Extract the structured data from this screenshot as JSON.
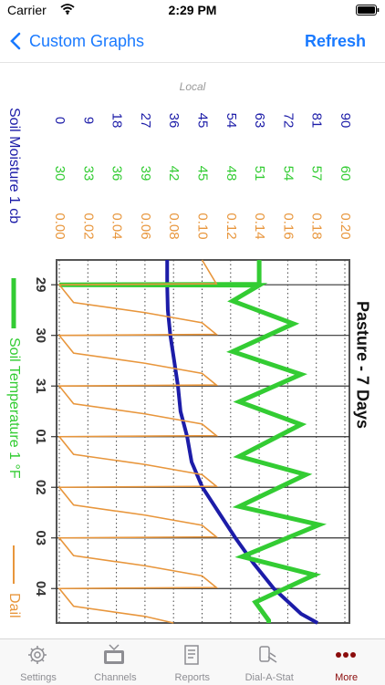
{
  "status_bar": {
    "carrier": "Carrier",
    "time": "2:29 PM"
  },
  "nav_bar": {
    "back": "Custom Graphs",
    "action": "Refresh"
  },
  "source_label": "Local",
  "chart_data": {
    "type": "line",
    "title": "Pasture - 7 Days",
    "xlim": [
      -0.49,
      6.68
    ],
    "xticks": [
      {
        "value": 0,
        "label": "29"
      },
      {
        "value": 1,
        "label": "30"
      },
      {
        "value": 2,
        "label": "31"
      },
      {
        "value": 3,
        "label": "01"
      },
      {
        "value": 4,
        "label": "02"
      },
      {
        "value": 5,
        "label": "03"
      },
      {
        "value": 6,
        "label": "04"
      }
    ],
    "ylim": [
      0,
      90
    ],
    "yticks": [
      0,
      9,
      18,
      27,
      36,
      45,
      54,
      63,
      72,
      81,
      90
    ],
    "y2lim": [
      30,
      60
    ],
    "y2ticks": [
      30,
      33,
      36,
      39,
      42,
      45,
      48,
      51,
      54,
      57,
      60
    ],
    "y3lim": [
      0,
      0.2
    ],
    "y3ticks": [
      {
        "value": 0,
        "label": "0.00"
      },
      {
        "value": 0.02,
        "label": "0.02"
      },
      {
        "value": 0.04,
        "label": "0.04"
      },
      {
        "value": 0.06,
        "label": "0.06"
      },
      {
        "value": 0.08,
        "label": "0.08"
      },
      {
        "value": 0.1,
        "label": "0.10"
      },
      {
        "value": 0.12,
        "label": "0.12"
      },
      {
        "value": 0.14,
        "label": "0.14"
      },
      {
        "value": 0.16,
        "label": "0.16"
      },
      {
        "value": 0.18,
        "label": "0.18"
      },
      {
        "value": 0.2,
        "label": "0.20"
      }
    ],
    "grid": true,
    "series": [
      {
        "name": "Soil Moisture 1 cb",
        "color": "#1c1ca8",
        "axis": "y",
        "x": [
          -0.49,
          0,
          0.5,
          1,
          1.5,
          2,
          2.5,
          3,
          3.5,
          4,
          4.5,
          5,
          5.5,
          6,
          6.5,
          6.68
        ],
        "values": [
          34,
          34,
          34.2,
          35,
          36.2,
          37.4,
          38.2,
          40.3,
          41.7,
          45.1,
          50.3,
          55.5,
          61.2,
          67.6,
          76.2,
          81.4
        ]
      },
      {
        "name": "Soil Temperature 1 °F",
        "color": "#33cc33",
        "axis": "y2",
        "x": [
          -0.49,
          -0.01,
          0,
          0.01,
          0.32,
          0.77,
          1.32,
          1.77,
          2.31,
          2.76,
          3.39,
          3.75,
          4.38,
          4.74,
          5.37,
          5.73,
          6.27,
          6.63,
          6.68
        ],
        "values": [
          51,
          51,
          30,
          51,
          48.2,
          54.6,
          48.2,
          55.4,
          48.9,
          55.4,
          48.9,
          55.9,
          48.9,
          57.3,
          49.2,
          56.8,
          50.6,
          52,
          52
        ]
      },
      {
        "name": "Dail",
        "color": "#e8963c",
        "axis": "y3",
        "x": [
          -0.49,
          -0.02,
          0,
          0.35,
          0.55,
          0.75,
          0.98,
          1,
          1.35,
          1.55,
          1.75,
          1.98,
          2,
          2.35,
          2.55,
          2.75,
          2.98,
          3,
          3.35,
          3.55,
          3.75,
          3.98,
          4,
          4.35,
          4.55,
          4.75,
          4.98,
          5,
          5.35,
          5.55,
          5.75,
          5.98,
          6,
          6.35,
          6.55,
          6.68
        ],
        "values": [
          0.1,
          0.11,
          0,
          0.01,
          0.06,
          0.1,
          0.11,
          0,
          0.01,
          0.06,
          0.1,
          0.11,
          0,
          0.01,
          0.06,
          0.1,
          0.11,
          0,
          0.01,
          0.06,
          0.1,
          0.11,
          0,
          0.01,
          0.06,
          0.1,
          0.11,
          0,
          0.01,
          0.06,
          0.1,
          0.11,
          0,
          0.01,
          0.06,
          0.08
        ]
      }
    ]
  },
  "tab_bar": {
    "tabs": [
      "Settings",
      "Channels",
      "Reports",
      "Dial-A-Stat",
      "More"
    ],
    "selected": 4
  }
}
